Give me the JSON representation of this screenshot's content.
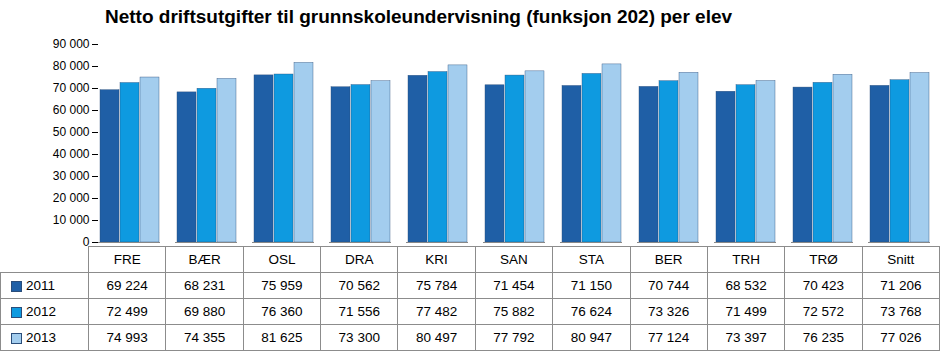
{
  "chart_data": {
    "type": "bar",
    "title": "Netto driftsutgifter til grunnskoleundervisning (funksjon 202) per elev",
    "categories": [
      "FRE",
      "BÆR",
      "OSL",
      "DRA",
      "KRI",
      "SAN",
      "STA",
      "BER",
      "TRH",
      "TRØ",
      "Snitt"
    ],
    "series": [
      {
        "name": "2011",
        "color": "#1F5FA6",
        "values": [
          69224,
          68231,
          75959,
          70562,
          75784,
          71454,
          71150,
          70744,
          68532,
          70423,
          71206
        ],
        "value_labels": [
          "69 224",
          "68 231",
          "75 959",
          "70 562",
          "75 784",
          "71 454",
          "71 150",
          "70 744",
          "68 532",
          "70 423",
          "71 206"
        ]
      },
      {
        "name": "2012",
        "color": "#0E9AE0",
        "values": [
          72499,
          69880,
          76360,
          71556,
          77482,
          75882,
          76624,
          73326,
          71499,
          72572,
          73768
        ],
        "value_labels": [
          "72 499",
          "69 880",
          "76 360",
          "71 556",
          "77 482",
          "75 882",
          "76 624",
          "73 326",
          "71 499",
          "72 572",
          "73 768"
        ]
      },
      {
        "name": "2013",
        "color": "#A3CDEE",
        "values": [
          74993,
          74355,
          81625,
          73300,
          80497,
          77792,
          80947,
          77124,
          73397,
          76235,
          77026
        ],
        "value_labels": [
          "74 993",
          "74 355",
          "81 625",
          "73 300",
          "80 497",
          "77 792",
          "80 947",
          "77 124",
          "73 397",
          "76 235",
          "77 026"
        ]
      }
    ],
    "ylim": [
      0,
      90000
    ],
    "yticks": [
      0,
      {
        "value": 10000,
        "label": "10 000"
      },
      {
        "value": 20000,
        "label": "20 000"
      },
      {
        "value": 30000,
        "label": "30 000"
      },
      {
        "value": 40000,
        "label": "40 000"
      },
      {
        "value": 50000,
        "label": "50 000"
      },
      {
        "value": 60000,
        "label": "60 000"
      },
      {
        "value": 70000,
        "label": "70 000"
      },
      {
        "value": 80000,
        "label": "80 000"
      },
      {
        "value": 90000,
        "label": "90 000"
      }
    ],
    "grid": false
  }
}
